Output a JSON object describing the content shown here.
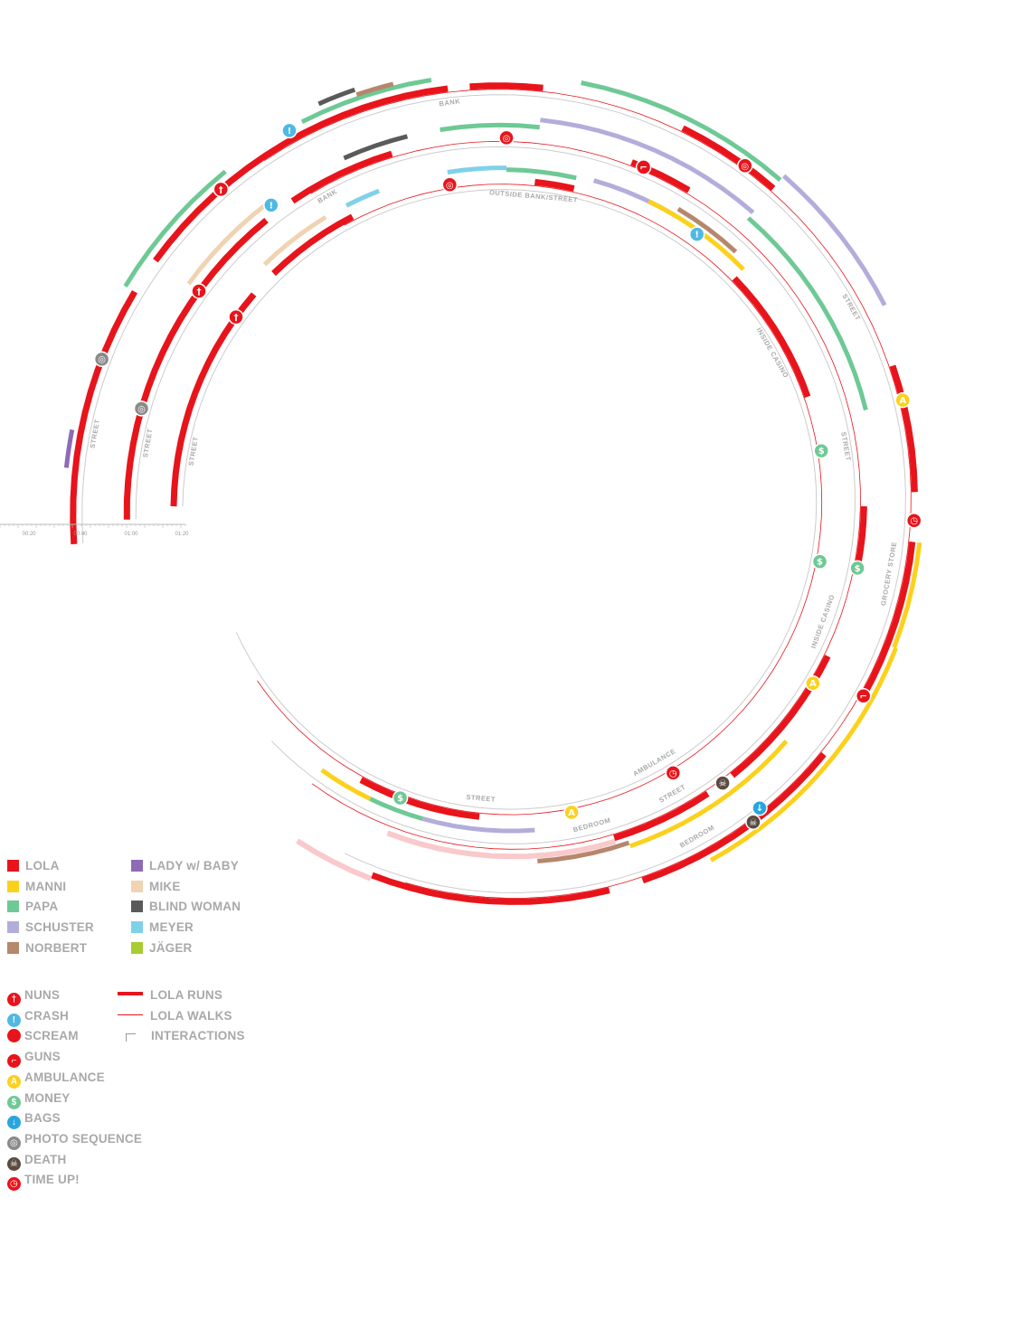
{
  "colors": {
    "lola": "#e8141b",
    "manni": "#fbd11d",
    "papa": "#6ec995",
    "schuster": "#b3addb",
    "norbert": "#b5876d",
    "lady_baby": "#8e6bb5",
    "mike": "#f0d3b2",
    "blind_woman": "#5a5a5a",
    "meyer": "#7fd1ea",
    "jager": "#a9cc33",
    "bedroom": "#f9c9cb",
    "guide": "#cccccc",
    "label": "#a9a9a9"
  },
  "time_axis": {
    "ticks": [
      "00:20",
      "00:40",
      "01:00",
      "01:20"
    ]
  },
  "location_labels": {
    "run1": [
      "STREET",
      "BANK",
      "STREET",
      "GROCERY STORE",
      "BEDROOM"
    ],
    "run2": [
      "STREET",
      "BANK",
      "STREET",
      "INSIDE CASINO",
      "STREET",
      "BEDROOM"
    ],
    "run3": [
      "STREET",
      "OUTSIDE BANK/STREET",
      "INSIDE CASINO",
      "AMBULANCE",
      "STREET"
    ]
  },
  "legend": {
    "characters_left": [
      {
        "label": "LOLA",
        "color": "#e8141b"
      },
      {
        "label": "MANNI",
        "color": "#fbd11d"
      },
      {
        "label": "PAPA",
        "color": "#6ec995"
      },
      {
        "label": "SCHUSTER",
        "color": "#b3addb"
      },
      {
        "label": "NORBERT",
        "color": "#b5876d"
      }
    ],
    "characters_right": [
      {
        "label": "LADY w/ BABY",
        "color": "#8e6bb5"
      },
      {
        "label": "MIKE",
        "color": "#f0d3b2"
      },
      {
        "label": "BLIND WOMAN",
        "color": "#5a5a5a"
      },
      {
        "label": "MEYER",
        "color": "#7fd1ea"
      },
      {
        "label": "JÄGER",
        "color": "#a9cc33"
      }
    ],
    "events": [
      {
        "label": "NUNS",
        "icon": "cross-icon",
        "color": "#e8141b",
        "glyph": "†"
      },
      {
        "label": "CRASH",
        "icon": "exclamation-icon",
        "color": "#4fb9e3",
        "glyph": "!"
      },
      {
        "label": "SCREAM",
        "icon": "target-icon",
        "color": "#e8141b",
        "glyph": ""
      },
      {
        "label": "GUNS",
        "icon": "gun-icon",
        "color": "#e8141b",
        "glyph": "⌐"
      },
      {
        "label": "AMBULANCE",
        "icon": "ambulance-icon",
        "color": "#fbd11d",
        "glyph": "A"
      },
      {
        "label": "MONEY",
        "icon": "money-icon",
        "color": "#6ec995",
        "glyph": "$"
      },
      {
        "label": "BAGS",
        "icon": "bags-icon",
        "color": "#29a6dd",
        "glyph": "↓"
      },
      {
        "label": "PHOTO SEQUENCE",
        "icon": "photo-sequence-icon",
        "color": "#8a8a8a",
        "glyph": "◎"
      },
      {
        "label": "DEATH",
        "icon": "skull-icon",
        "color": "#5a4a40",
        "glyph": "☠"
      },
      {
        "label": "TIME UP!",
        "icon": "stopwatch-icon",
        "color": "#e8141b",
        "glyph": "◷"
      }
    ],
    "line_types": [
      {
        "label": "LOLA RUNS",
        "style": "thick"
      },
      {
        "label": "LOLA WALKS",
        "style": "thin"
      },
      {
        "label": "INTERACTIONS",
        "style": "bracket"
      }
    ]
  }
}
